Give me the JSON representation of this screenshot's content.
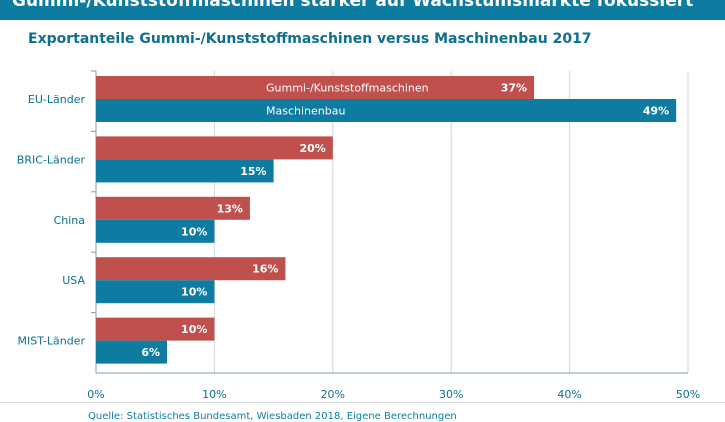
{
  "header": {
    "title": "Gummi-/Kunststoffmaschinen stärker auf Wachstumsmärkte fokussiert"
  },
  "colors": {
    "header_band": "#0e7ca0",
    "title_text": "#0e6f8f",
    "series_gummi": "#c0504d",
    "series_maschinenbau": "#0e7ca0"
  },
  "chart_data": {
    "type": "bar",
    "orientation": "horizontal",
    "title": "Exportanteile Gummi-/Kunststoffmaschinen versus Maschinenbau 2017",
    "categories": [
      "EU-Länder",
      "BRIC-Länder",
      "China",
      "USA",
      "MIST-Länder"
    ],
    "series": [
      {
        "name": "Gummi-/Kunststoffmaschinen",
        "color": "#c0504d",
        "values": [
          37,
          20,
          13,
          16,
          10
        ],
        "labels": [
          "37%",
          "20%",
          "13%",
          "16%",
          "10%"
        ]
      },
      {
        "name": "Maschinenbau",
        "color": "#0e7ca0",
        "values": [
          49,
          15,
          10,
          10,
          6
        ],
        "labels": [
          "49%",
          "15%",
          "10%",
          "10%",
          "6%"
        ]
      }
    ],
    "xlim": [
      0,
      50
    ],
    "xticks": [
      0,
      10,
      20,
      30,
      40,
      50
    ],
    "xtick_labels": [
      "0%",
      "10%",
      "20%",
      "30%",
      "40%",
      "50%"
    ],
    "grid": true,
    "legend": "inline in first bars"
  },
  "source": "Quelle: Statistisches Bundesamt, Wiesbaden 2018, Eigene Berechnungen"
}
